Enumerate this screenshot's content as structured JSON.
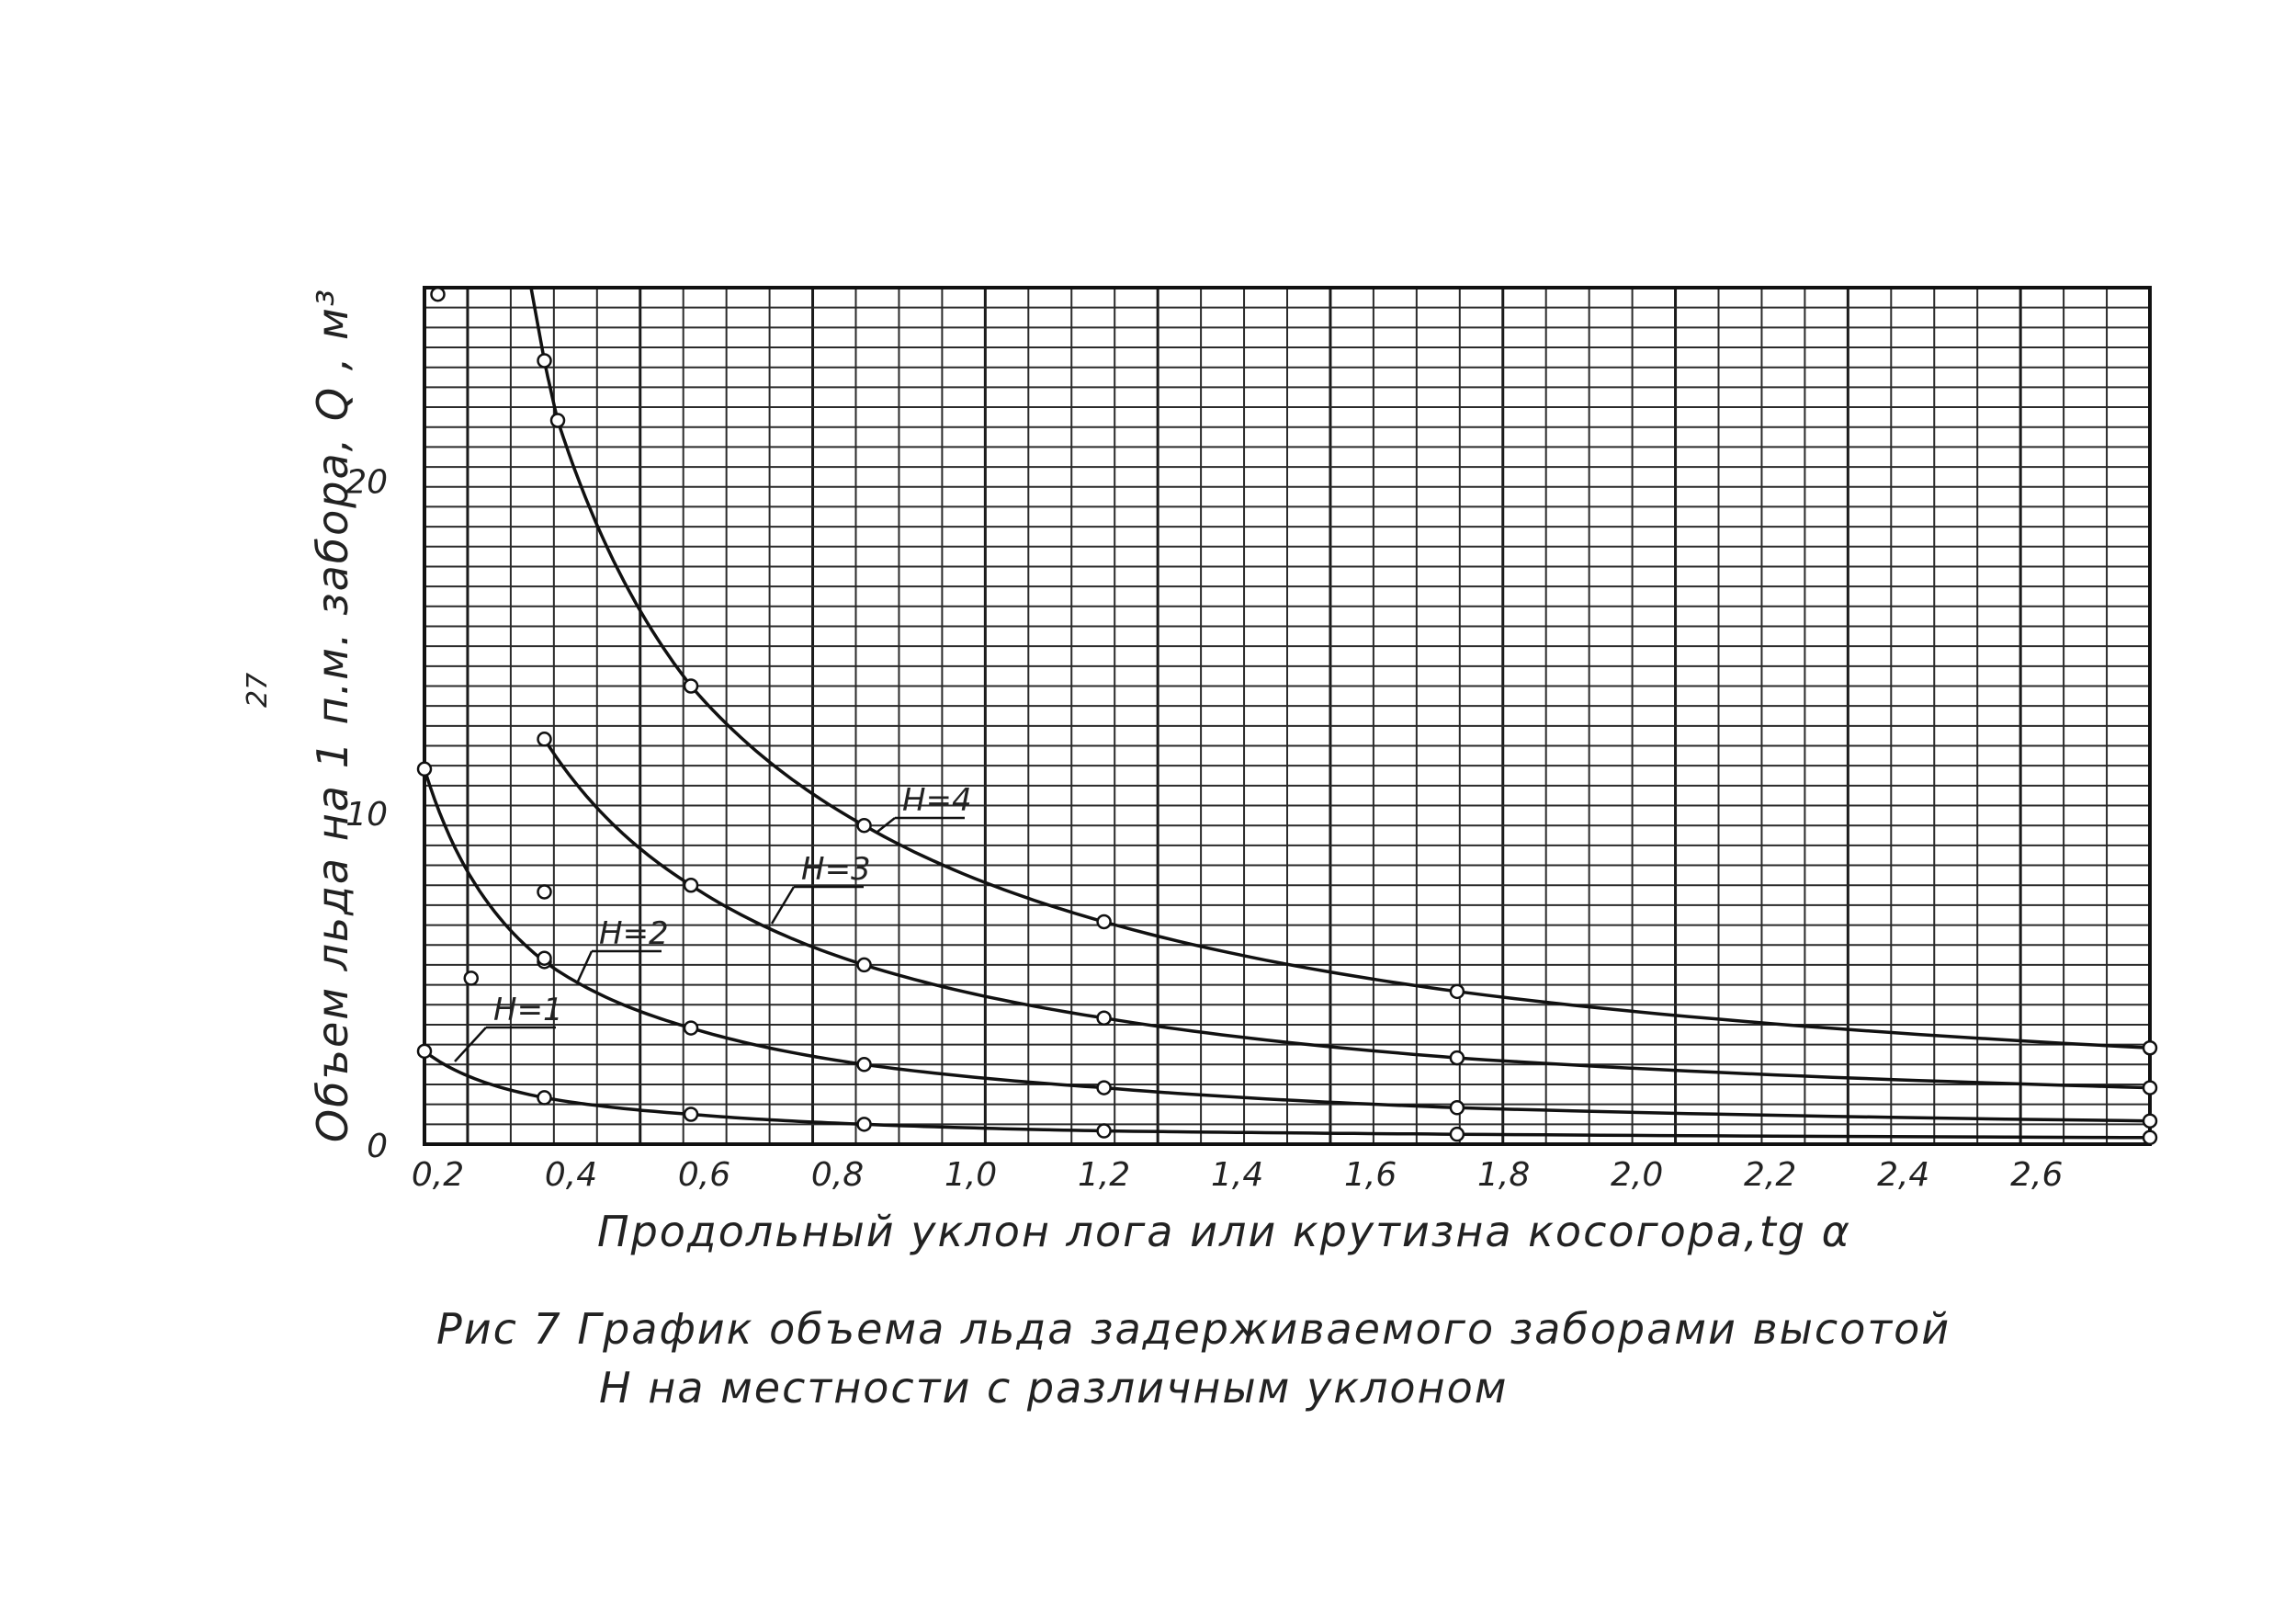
{
  "chart_data": {
    "type": "line",
    "xlabel": "Продольный   уклон   лога  или   крутизна  косогора,tg α",
    "ylabel": "Объем  льда  на  1 п.м. забора, Q , м³",
    "xlim": [
      0.18,
      2.77
    ],
    "ylim": [
      0,
      25.8
    ],
    "x_ticks": [
      "0,2",
      "0,4",
      "0,6",
      "0,8",
      "1,0",
      "1,2",
      "1,4",
      "1,6",
      "1,8",
      "2,0",
      "2,2",
      "2,4",
      "2,6"
    ],
    "y_ticks": [
      "0",
      "10",
      "20"
    ],
    "grid": true,
    "series": [
      {
        "name": "H=1",
        "x": [
          0.18,
          0.36,
          0.58,
          0.84,
          1.2,
          1.73,
          2.77
        ],
        "y": [
          2.8,
          1.4,
          0.9,
          0.6,
          0.4,
          0.3,
          0.2
        ]
      },
      {
        "name": "H=2",
        "x": [
          0.18,
          0.36,
          0.58,
          0.84,
          1.2,
          1.73,
          2.77
        ],
        "y": [
          11.3,
          5.5,
          3.5,
          2.4,
          1.7,
          1.1,
          0.7
        ]
      },
      {
        "name": "H=3",
        "x": [
          0.36,
          0.58,
          0.84,
          1.2,
          1.73,
          2.77
        ],
        "y": [
          12.2,
          7.8,
          5.4,
          3.8,
          2.6,
          1.7
        ]
      },
      {
        "name": "H=4",
        "x": [
          0.36,
          0.38,
          0.58,
          0.84,
          1.2,
          1.73,
          2.77
        ],
        "y": [
          23.6,
          21.8,
          13.8,
          9.6,
          6.7,
          4.6,
          2.9
        ]
      }
    ],
    "extra_points": [
      {
        "x": 0.2,
        "y": 25.6
      },
      {
        "x": 0.36,
        "y": 7.6
      },
      {
        "x": 0.36,
        "y": 5.6
      },
      {
        "x": 0.25,
        "y": 5.0
      }
    ]
  },
  "caption": {
    "line1": "Рис 7   График  объема  льда   задерживаемого   заборами  высотой",
    "line2": "Н  на  местности  с  различным  уклоном"
  },
  "page_mark": "27"
}
